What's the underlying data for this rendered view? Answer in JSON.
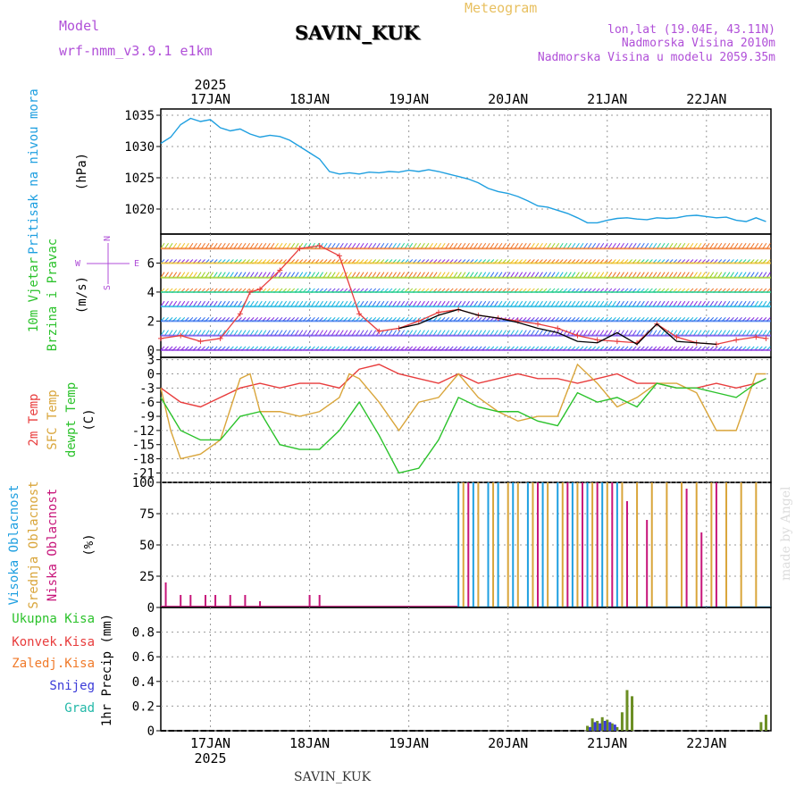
{
  "header": {
    "model_label": "Model",
    "model_name": "wrf-nmm_v3.9.1 e1km",
    "station": "SAVIN_KUK",
    "product": "Meteogram",
    "lonlat": "lon,lat (19.04E, 43.11N)",
    "elevation": "Nadmorska Visina 2010m",
    "model_elevation": "Nadmorska Visina u modelu 2059.35m",
    "footer_station": "SAVIN_KUK",
    "credit": "made by Angel"
  },
  "colors": {
    "pressure": "#1e9fe0",
    "temp2m": "#e83c3c",
    "sfc": "#d9a53a",
    "dewpt": "#2bc22b",
    "high_cloud": "#1e9fe0",
    "mid_cloud": "#d9a53a",
    "low_cloud": "#c7157a",
    "total_precip": "#2bc22b",
    "conv_precip": "#e83c3c",
    "freezing": "#f07a2a",
    "snow": "#3a3ad8",
    "hail": "#22b8a8",
    "wind_speed": "#e83c3c",
    "gust": "#000000"
  },
  "chart_data": [
    {
      "type": "line",
      "id": "pressure",
      "ylabel_lines": [
        "Pritisak na nivou mora",
        "(hPa)"
      ],
      "ylim": [
        1016,
        1036
      ],
      "yticks": [
        1020,
        1025,
        1030,
        1035
      ],
      "top_labels": {
        "year": "2025",
        "days": [
          "17JAN",
          "18JAN",
          "19JAN",
          "20JAN",
          "21JAN",
          "22JAN"
        ]
      },
      "series": [
        {
          "x": [
            0,
            0.1,
            0.2,
            0.3,
            0.4,
            0.5,
            0.6,
            0.7,
            0.8,
            0.9,
            1.0,
            1.1,
            1.2,
            1.3,
            1.4,
            1.5,
            1.6,
            1.7,
            1.8,
            1.9,
            2.0,
            2.1,
            2.2,
            2.3,
            2.4,
            2.5,
            2.6,
            2.7,
            2.8,
            2.9,
            3.0,
            3.1,
            3.2,
            3.3,
            3.4,
            3.5,
            3.6,
            3.7,
            3.8,
            3.9,
            4.0,
            4.1,
            4.2,
            4.3,
            4.4,
            4.5,
            4.6,
            4.7,
            4.8,
            4.9,
            5.0,
            5.1,
            5.2,
            5.3,
            5.4,
            5.5,
            5.6,
            5.7,
            5.8,
            5.9,
            6.0,
            6.1
          ],
          "values": [
            1030.5,
            1031.5,
            1033.5,
            1034.5,
            1034.0,
            1034.3,
            1033.0,
            1032.5,
            1032.8,
            1032.0,
            1031.5,
            1031.8,
            1031.6,
            1031.0,
            1030.0,
            1029.0,
            1028.0,
            1026.0,
            1025.6,
            1025.8,
            1025.6,
            1025.9,
            1025.8,
            1026.0,
            1025.9,
            1026.2,
            1026.0,
            1026.3,
            1026.0,
            1025.6,
            1025.2,
            1024.8,
            1024.2,
            1023.3,
            1022.8,
            1022.5,
            1022.0,
            1021.3,
            1020.5,
            1020.3,
            1019.8,
            1019.3,
            1018.6,
            1017.8,
            1017.8,
            1018.2,
            1018.5,
            1018.6,
            1018.4,
            1018.3,
            1018.6,
            1018.5,
            1018.6,
            1018.9,
            1019.0,
            1018.8,
            1018.6,
            1018.7,
            1018.2,
            1018.0,
            1018.6,
            1018.0
          ]
        }
      ]
    },
    {
      "type": "line",
      "id": "wind",
      "ylabel_lines": [
        "10m Vjetar",
        "Brzina i Pravac",
        "(m/s)"
      ],
      "compass": {
        "n": "N",
        "s": "S",
        "w": "W",
        "e": "E"
      },
      "ylim": [
        -0.5,
        8
      ],
      "yticks": [
        0,
        2,
        4,
        6
      ],
      "barb_levels": [
        0,
        1,
        2,
        3,
        4,
        5,
        6,
        7
      ],
      "series": [
        {
          "name": "wind_speed",
          "x": [
            0,
            0.2,
            0.4,
            0.6,
            0.8,
            0.9,
            1.0,
            1.2,
            1.4,
            1.6,
            1.8,
            2.0,
            2.2,
            2.4,
            2.6,
            2.8,
            3.0,
            3.2,
            3.4,
            3.6,
            3.8,
            4.0,
            4.2,
            4.4,
            4.6,
            4.8,
            5.0,
            5.2,
            5.4,
            5.6,
            5.8,
            6.0,
            6.1
          ],
          "values": [
            0.8,
            1.0,
            0.6,
            0.8,
            2.5,
            4.0,
            4.2,
            5.5,
            7.0,
            7.2,
            6.5,
            2.5,
            1.3,
            1.5,
            2.0,
            2.6,
            2.8,
            2.4,
            2.2,
            2.0,
            1.8,
            1.5,
            1.0,
            0.7,
            0.6,
            0.5,
            1.8,
            0.9,
            0.5,
            0.4,
            0.7,
            0.9,
            0.8
          ]
        },
        {
          "name": "gust",
          "x": [
            2.4,
            2.6,
            2.8,
            3.0,
            3.2,
            3.4,
            3.6,
            3.8,
            4.0,
            4.2,
            4.4,
            4.6,
            4.8,
            5.0,
            5.2,
            5.4,
            5.6
          ],
          "values": [
            1.5,
            1.8,
            2.4,
            2.8,
            2.4,
            2.2,
            1.9,
            1.5,
            1.2,
            0.6,
            0.5,
            1.2,
            0.4,
            1.8,
            0.6,
            0.5,
            0.4
          ]
        }
      ]
    },
    {
      "type": "line",
      "id": "temperature",
      "ylabel_lines": [
        "2m Temp",
        "SFC Temp",
        "dewpt Temp",
        "(C)"
      ],
      "ylim": [
        -23,
        3.5
      ],
      "yticks": [
        3,
        0,
        -3,
        -6,
        -9,
        -12,
        -15,
        -18,
        -21
      ],
      "series": [
        {
          "name": "2m Temp",
          "x": [
            0,
            0.2,
            0.4,
            0.6,
            0.8,
            1.0,
            1.2,
            1.4,
            1.6,
            1.8,
            2.0,
            2.2,
            2.4,
            2.6,
            2.8,
            3.0,
            3.2,
            3.4,
            3.6,
            3.8,
            4.0,
            4.2,
            4.4,
            4.6,
            4.8,
            5.0,
            5.2,
            5.4,
            5.6,
            5.8,
            6.0,
            6.1
          ],
          "values": [
            -3,
            -6,
            -7,
            -5,
            -3,
            -2,
            -3,
            -2,
            -2,
            -3,
            1,
            2,
            0,
            -1,
            -2,
            0,
            -2,
            -1,
            0,
            -1,
            -1,
            -2,
            -1,
            0,
            -2,
            -2,
            -3,
            -3,
            -2,
            -3,
            -2,
            -1
          ]
        },
        {
          "name": "SFC Temp",
          "x": [
            0,
            0.1,
            0.2,
            0.4,
            0.6,
            0.8,
            0.9,
            1.0,
            1.2,
            1.4,
            1.6,
            1.8,
            1.9,
            2.0,
            2.2,
            2.4,
            2.6,
            2.8,
            3.0,
            3.2,
            3.4,
            3.6,
            3.8,
            4.0,
            4.2,
            4.4,
            4.6,
            4.8,
            5.0,
            5.2,
            5.4,
            5.6,
            5.8,
            6.0,
            6.1
          ],
          "values": [
            -3,
            -12,
            -18,
            -17,
            -14,
            -1,
            0,
            -8,
            -8,
            -9,
            -8,
            -5,
            0,
            -1,
            -6,
            -12,
            -6,
            -5,
            0,
            -5,
            -8,
            -10,
            -9,
            -9,
            2,
            -2,
            -7,
            -5,
            -2,
            -2,
            -4,
            -12,
            -12,
            0,
            0
          ]
        },
        {
          "name": "dewpt Temp",
          "x": [
            0,
            0.2,
            0.4,
            0.6,
            0.8,
            1.0,
            1.2,
            1.4,
            1.6,
            1.8,
            2.0,
            2.2,
            2.4,
            2.6,
            2.8,
            3.0,
            3.2,
            3.4,
            3.6,
            3.8,
            4.0,
            4.2,
            4.4,
            4.6,
            4.8,
            5.0,
            5.2,
            5.4,
            5.6,
            5.8,
            6.0,
            6.1
          ],
          "values": [
            -5,
            -12,
            -14,
            -14,
            -9,
            -8,
            -15,
            -16,
            -16,
            -12,
            -6,
            -13,
            -21,
            -20,
            -14,
            -5,
            -7,
            -8,
            -8,
            -10,
            -11,
            -4,
            -6,
            -5,
            -7,
            -2,
            -3,
            -3,
            -4,
            -5,
            -2,
            -1
          ]
        }
      ]
    },
    {
      "type": "bar",
      "id": "clouds",
      "ylabel_lines": [
        "Visoka Oblacnost",
        "Srednja Oblacnost",
        "Niska Oblacnost",
        "(%)"
      ],
      "ylim": [
        0,
        100
      ],
      "yticks": [
        0,
        25,
        50,
        75,
        100
      ],
      "series": [
        {
          "name": "Visoka",
          "x": [
            3.0,
            3.15,
            3.3,
            3.4,
            3.55,
            3.7,
            3.85,
            4.0,
            4.15,
            4.3,
            4.45,
            4.6
          ],
          "values": [
            100,
            100,
            100,
            100,
            100,
            100,
            100,
            100,
            100,
            100,
            100,
            100
          ]
        },
        {
          "name": "Srednja",
          "x": [
            3.05,
            3.2,
            3.35,
            3.5,
            3.6,
            3.75,
            3.9,
            4.05,
            4.2,
            4.35,
            4.5,
            4.65,
            4.8,
            4.95,
            5.1,
            5.25,
            5.4,
            5.55,
            5.7,
            5.85,
            6.0
          ],
          "values": [
            100,
            100,
            100,
            100,
            100,
            100,
            100,
            100,
            100,
            100,
            100,
            100,
            100,
            100,
            100,
            100,
            100,
            100,
            100,
            100,
            100
          ]
        },
        {
          "name": "Niska",
          "x": [
            0.05,
            0.2,
            0.3,
            0.45,
            0.55,
            0.7,
            0.85,
            1.0,
            1.5,
            1.6,
            3.1,
            3.8,
            4.1,
            4.25,
            4.4,
            4.55,
            4.7,
            4.9,
            5.3,
            5.45,
            5.6
          ],
          "values": [
            20,
            10,
            10,
            10,
            10,
            10,
            10,
            5,
            10,
            10,
            100,
            100,
            100,
            100,
            100,
            100,
            85,
            70,
            95,
            60,
            100
          ]
        }
      ]
    },
    {
      "type": "bar",
      "id": "precip",
      "ylabel_lines": [
        "1hr Precip (mm)"
      ],
      "legend": [
        "Ukupna Kisa",
        "Konvek.Kisa",
        "Zaledj.Kisa",
        "Snijeg",
        "Grad"
      ],
      "ylim": [
        0,
        1.0
      ],
      "yticks": [
        0,
        0.2,
        0.4,
        0.6,
        0.8
      ],
      "bottom_labels": {
        "year": "2025",
        "days": [
          "17JAN",
          "18JAN",
          "19JAN",
          "20JAN",
          "21JAN",
          "22JAN"
        ]
      },
      "series": [
        {
          "name": "Ukupna Kisa",
          "x": [
            4.3,
            4.35,
            4.4,
            4.45,
            4.5,
            4.55,
            4.6,
            4.65,
            4.7,
            4.75,
            6.05,
            6.1
          ],
          "values": [
            0.04,
            0.1,
            0.08,
            0.11,
            0.09,
            0.06,
            0.03,
            0.15,
            0.33,
            0.28,
            0.07,
            0.13
          ]
        },
        {
          "name": "Snijeg",
          "x": [
            4.3,
            4.35,
            4.4,
            4.45,
            4.5,
            4.55
          ],
          "values": [
            0.03,
            0.07,
            0.06,
            0.08,
            0.07,
            0.05
          ]
        }
      ]
    }
  ]
}
